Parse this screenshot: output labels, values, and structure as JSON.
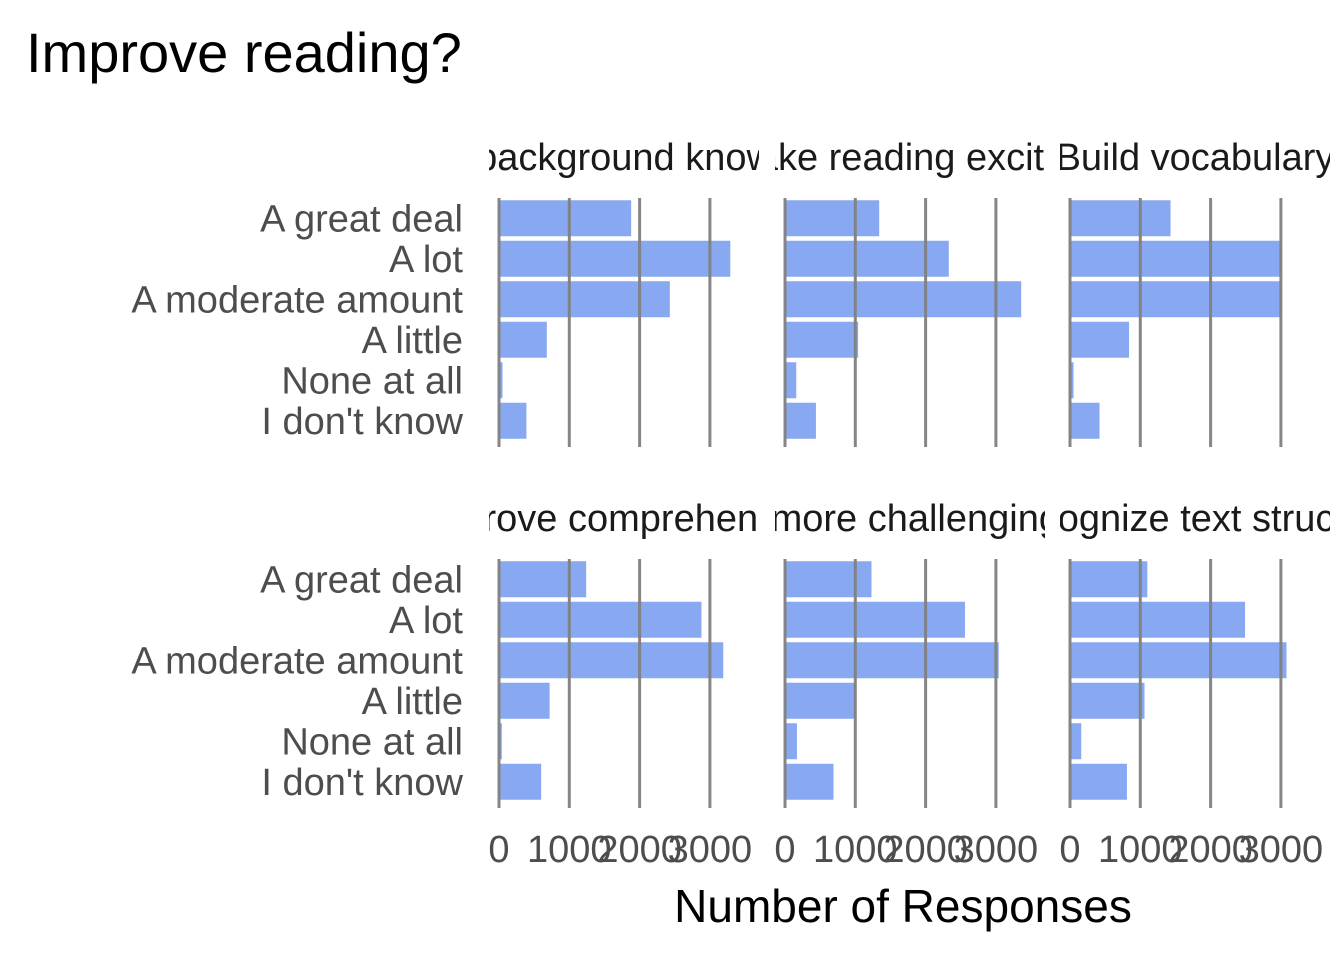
{
  "chart_data": {
    "type": "bar",
    "orientation": "horizontal",
    "title": "Improve reading?",
    "xlabel": "Number of Responses",
    "ylabel": "",
    "xlim": [
      0,
      3500
    ],
    "xticks": [
      "0",
      "1000",
      "2000",
      "3000"
    ],
    "xtick_values": [
      0,
      1000,
      2000,
      3000
    ],
    "grid": "vertical",
    "bar_color": "#7b9ff0",
    "grid_color": "#808080",
    "categories": [
      "A great deal",
      "A lot",
      "A moderate amount",
      "A little",
      "None at all",
      "I don't know"
    ],
    "panels": [
      {
        "label": "Build background knowledge",
        "values": [
          1880,
          3290,
          2430,
          680,
          50,
          390
        ]
      },
      {
        "label": "Make reading exciting",
        "values": [
          1340,
          2330,
          3360,
          1040,
          160,
          440
        ]
      },
      {
        "label": "Build vocabulary",
        "values": [
          1430,
          3000,
          3000,
          840,
          50,
          420
        ]
      },
      {
        "label": "Improve comprehension",
        "values": [
          1240,
          2880,
          3190,
          720,
          40,
          600
        ]
      },
      {
        "label": "Read more challenging texts",
        "values": [
          1230,
          2560,
          3040,
          1010,
          170,
          690
        ]
      },
      {
        "label": "Recognize text structure",
        "values": [
          1100,
          2490,
          3080,
          1060,
          160,
          810
        ]
      }
    ]
  }
}
